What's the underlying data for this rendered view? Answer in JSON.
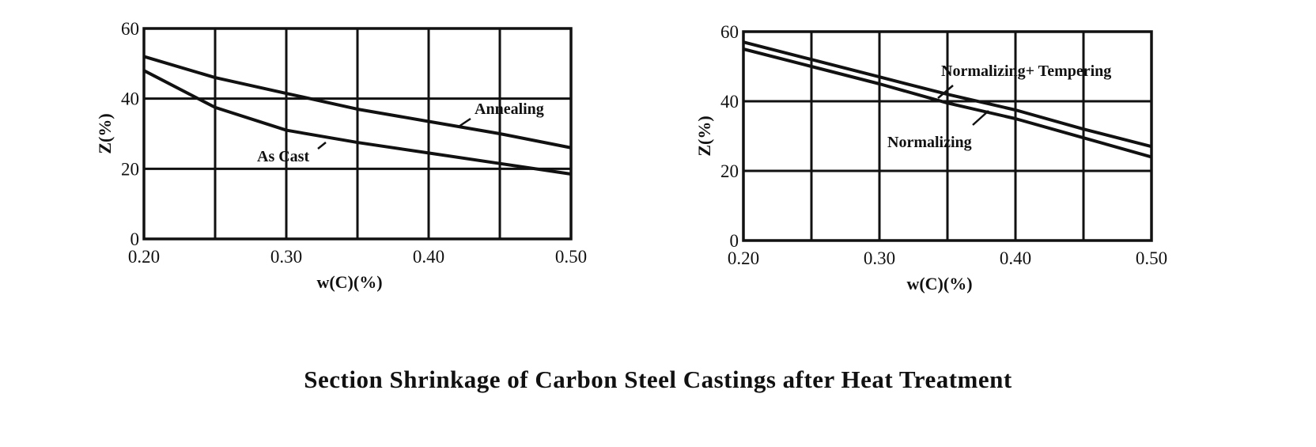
{
  "chart_data": [
    {
      "type": "line",
      "title": "",
      "xlabel": "w(C)(%)",
      "ylabel": "Z(%)",
      "xlim": [
        0.2,
        0.5
      ],
      "ylim": [
        0,
        60
      ],
      "grid": true,
      "x_ticks": [
        "0.20",
        "0.30",
        "0.40",
        "0.50"
      ],
      "y_ticks": [
        "0",
        "20",
        "40",
        "60"
      ],
      "x": [
        0.2,
        0.25,
        0.3,
        0.35,
        0.4,
        0.45,
        0.5
      ],
      "series": [
        {
          "name": "Annealing",
          "values": [
            52,
            46,
            41.5,
            37,
            33.5,
            30,
            26
          ]
        },
        {
          "name": "As Cast",
          "values": [
            48,
            37.5,
            31,
            27.5,
            24.5,
            21.5,
            18.5
          ]
        }
      ]
    },
    {
      "type": "line",
      "title": "",
      "xlabel": "w(C)(%)",
      "ylabel": "Z(%)",
      "xlim": [
        0.2,
        0.5
      ],
      "ylim": [
        0,
        60
      ],
      "grid": true,
      "x_ticks": [
        "0.20",
        "0.30",
        "0.40",
        "0.50"
      ],
      "y_ticks": [
        "0",
        "20",
        "40",
        "60"
      ],
      "x": [
        0.2,
        0.25,
        0.3,
        0.35,
        0.4,
        0.45,
        0.5
      ],
      "series": [
        {
          "name": "Normalizing+ Tempering",
          "values": [
            57,
            52,
            47,
            42,
            37.5,
            32,
            27
          ]
        },
        {
          "name": "Normalizing",
          "values": [
            55,
            50,
            45,
            39.5,
            35,
            29.5,
            24
          ]
        }
      ]
    }
  ],
  "caption": "Section Shrinkage of Carbon Steel Castings after Heat Treatment"
}
